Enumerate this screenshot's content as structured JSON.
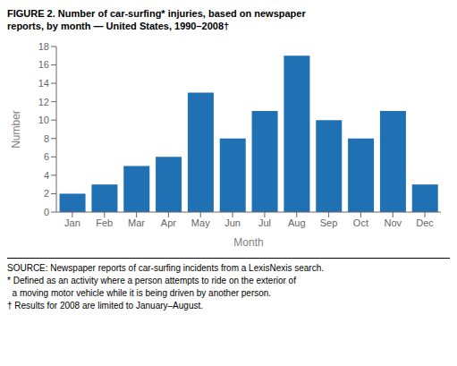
{
  "chart_data": {
    "type": "bar",
    "title": "FIGURE 2. Number of car-surfing* injuries, based on newspaper\nreports, by month — United States, 1990–2008†",
    "categories": [
      "Jan",
      "Feb",
      "Mar",
      "Apr",
      "May",
      "Jun",
      "Jul",
      "Aug",
      "Sep",
      "Oct",
      "Nov",
      "Dec"
    ],
    "values": [
      2,
      3,
      5,
      6,
      13,
      8,
      11,
      17,
      10,
      8,
      11,
      3
    ],
    "color": "#2070B4",
    "xlabel": "Month",
    "ylabel": "Number",
    "ylim": [
      0,
      18
    ],
    "yticks": [
      0,
      2,
      4,
      6,
      8,
      10,
      12,
      14,
      16,
      18
    ],
    "grid": false,
    "annotations": [
      "SOURCE: Newspaper reports of car-surfing incidents from a LexisNexis search.",
      "* Defined as an activity where a person attempts to ride on the exterior of",
      "  a moving motor vehicle while it is being driven by another person.",
      "† Results for 2008 are limited to January–August."
    ]
  }
}
